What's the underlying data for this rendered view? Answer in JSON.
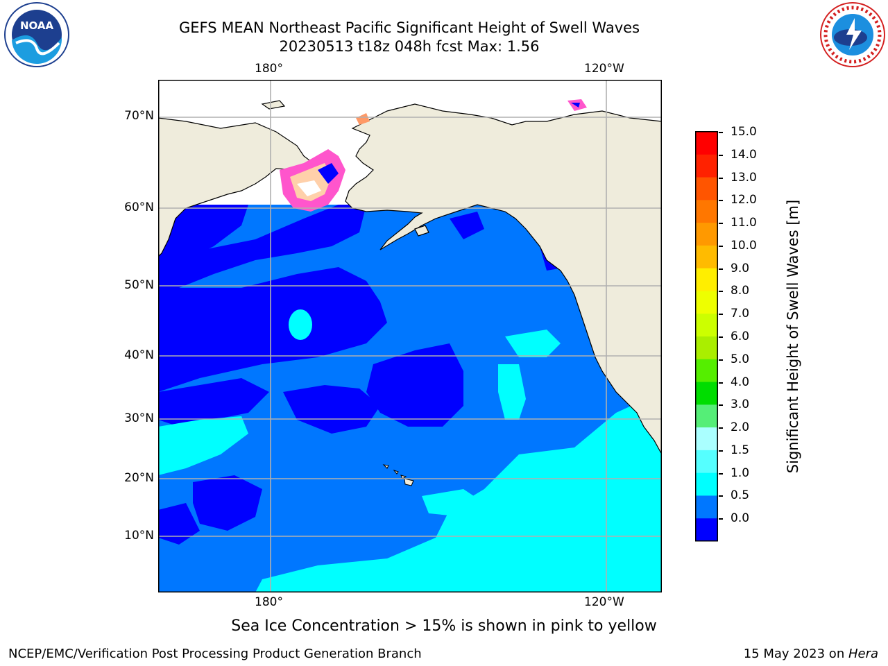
{
  "title_line1": "GEFS MEAN Northeast Pacific Significant Height of Swell Waves",
  "title_line2": "20230513 t18z 048h fcst   Max: 1.56",
  "longitude_labels": [
    "180°",
    "120°W"
  ],
  "latitude_labels": [
    "70°N",
    "60°N",
    "50°N",
    "40°N",
    "30°N",
    "20°N",
    "10°N"
  ],
  "colorbar": {
    "label": "Significant Height of Swell Waves [m]",
    "ticks": [
      "15.0",
      "14.0",
      "13.0",
      "12.0",
      "11.0",
      "10.0",
      "9.0",
      "8.0",
      "7.0",
      "6.0",
      "5.0",
      "4.0",
      "3.0",
      "2.0",
      "1.5",
      "1.0",
      "0.5",
      "0.0"
    ],
    "colors_top_to_bottom": [
      "#ff0000",
      "#ff2200",
      "#ff5500",
      "#ff7700",
      "#ff9900",
      "#ffbb00",
      "#ffee00",
      "#eeff00",
      "#ccff00",
      "#aaee00",
      "#55ee00",
      "#00dd00",
      "#55ee77",
      "#aaffff",
      "#55ffff",
      "#00ffff",
      "#0077ff",
      "#0000ff"
    ]
  },
  "sea_ice_note": "Sea Ice Concentration > 15% is shown in pink to yellow",
  "footer_left": "NCEP/EMC/Verification Post Processing Product Generation Branch",
  "footer_right_prefix": "15 May 2023 on ",
  "footer_right_host": "Hera",
  "logos": {
    "left": "NOAA",
    "right": "NATIONAL WEATHER SERVICE"
  },
  "colors": {
    "land": "#efecdc",
    "wave_0_0_5": "#0000ff",
    "wave_0_5_1": "#0077ff",
    "wave_1_1_5": "#00ffff",
    "grid": "#b0b0b0"
  }
}
